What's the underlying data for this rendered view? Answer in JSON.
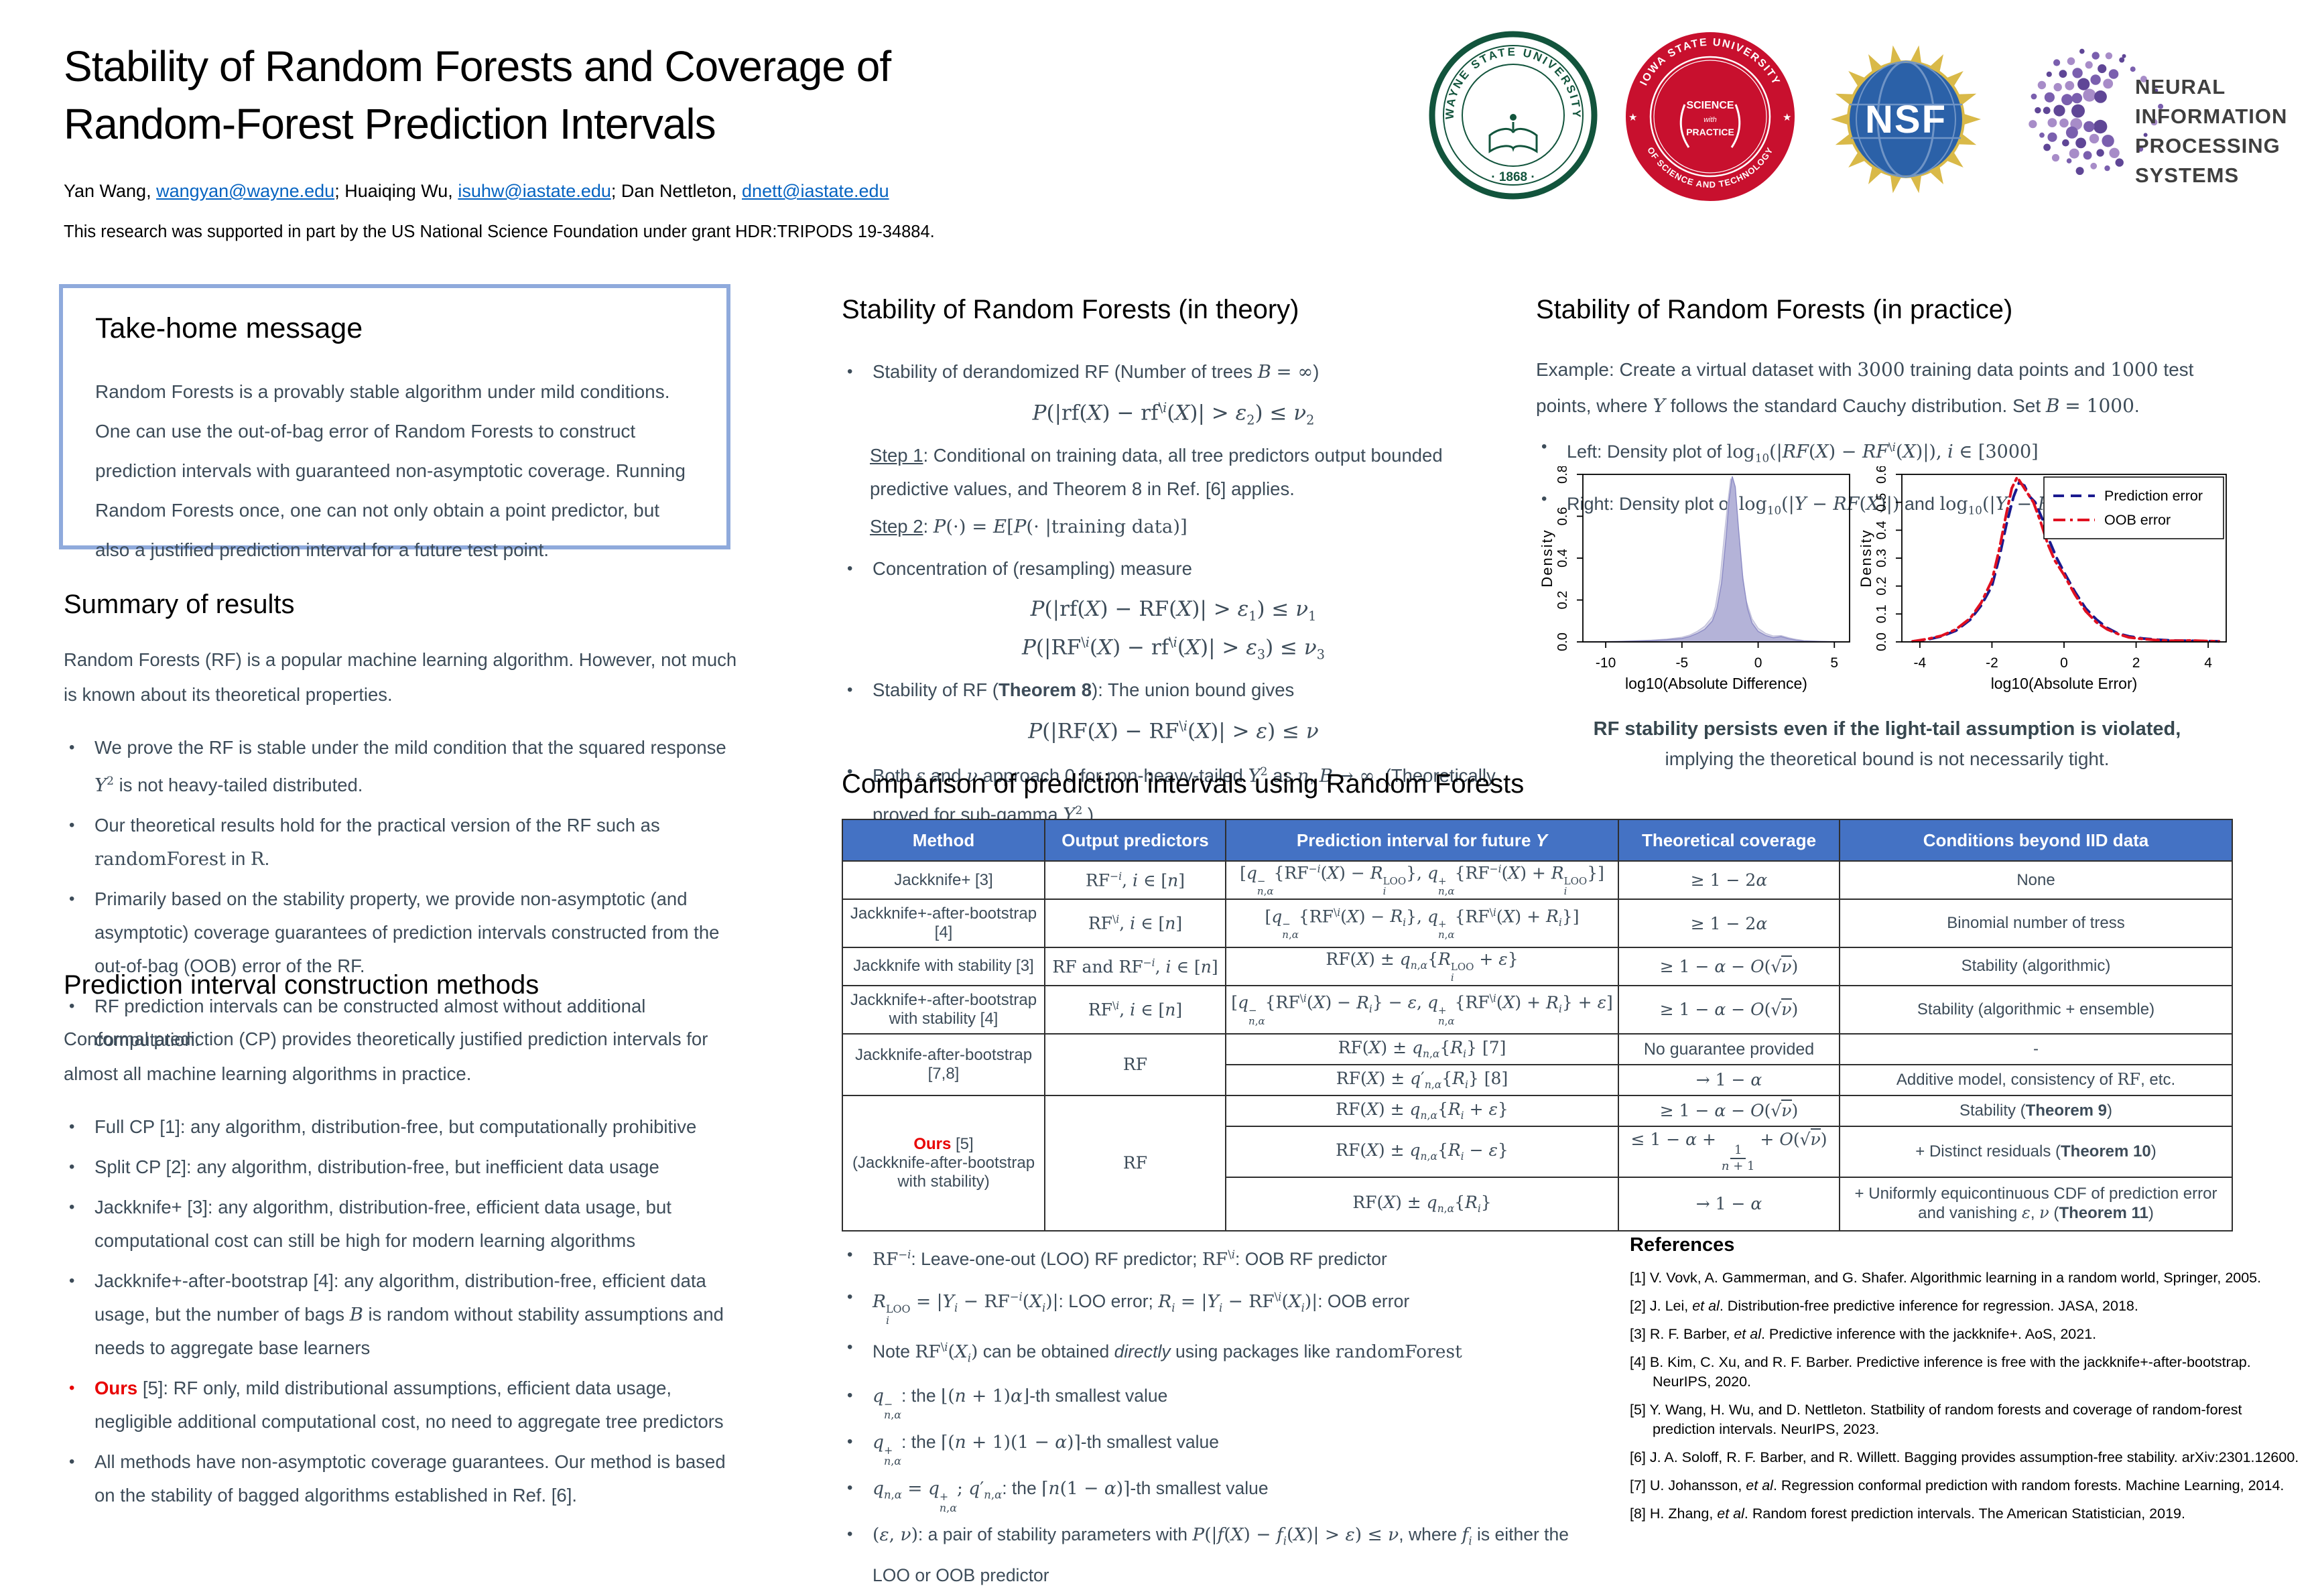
{
  "poster": {
    "title_line1": "Stability of Random Forests and Coverage of",
    "title_line2": "Random-Forest Prediction Intervals",
    "authors": [
      {
        "name": "Yan Wang,",
        "email": "wangyan@wayne.edu",
        "sep": ";"
      },
      {
        "name": "Huaiqing Wu,",
        "email": "isuhw@iastate.edu",
        "sep": ";"
      },
      {
        "name": "Dan Nettleton,",
        "email": "dnett@iastate.edu",
        "sep": ""
      }
    ],
    "support": "This research was supported in part by the US National Science Foundation under grant HDR:TRIPODS 19-34884."
  },
  "logos": {
    "wsu": {
      "ring_text": "WAYNE STATE UNIVERSITY",
      "year": "· 1868 ·"
    },
    "isu": {
      "top": "IOWA STATE UNIVERSITY",
      "bottom": "OF SCIENCE AND TECHNOLOGY",
      "center1": "SCIENCE",
      "center2": "with",
      "center3": "PRACTICE"
    },
    "nsf": {
      "text": "NSF"
    },
    "neurips": {
      "line1": "NEURAL INFORMATION",
      "line2": "PROCESSING SYSTEMS"
    }
  },
  "takehome": {
    "title": "Take-home message",
    "body": "Random Forests is a provably stable algorithm under mild conditions. One can use the out-of-bag error of Random Forests to construct prediction intervals with guaranteed non-asymptotic coverage. Running Random Forests once, one can not only obtain a point predictor, but also a justified prediction interval for a future test point."
  },
  "summary": {
    "title": "Summary of results",
    "intro": "Random Forests (RF) is a popular machine learning algorithm. However, not much is known about its theoretical properties.",
    "bullets": [
      "We prove the RF is stable under the mild condition that the squared response <i class='fm'>Y</i><sup class='fm'>2</sup> is not heavy-tailed distributed.",
      "Our theoretical results hold for the practical version of the RF such as <span class='fm'>randomForest</span> in <span class='fm'>R</span>.",
      "Primarily based on the stability property, we provide non-asymptotic (and asymptotic) coverage guarantees of prediction intervals constructed from the out-of-bag (OOB) error of the RF.",
      "RF prediction intervals can be constructed almost without additional computation."
    ]
  },
  "methods": {
    "title": "Prediction interval construction methods",
    "intro": "Conformal prediction (CP) provides theoretically justified prediction intervals for almost all machine learning algorithms in practice.",
    "bullets": [
      "Full CP [1]: any algorithm, distribution-free, but computationally prohibitive",
      "Split CP [2]: any algorithm, distribution-free, but inefficient data usage",
      "Jackknife+ [3]: any algorithm, distribution-free, efficient data usage, but computational cost can still be high for modern learning algorithms",
      "Jackknife+-after-bootstrap [4]: any algorithm, distribution-free, efficient data usage, but the number of bags <i class='fm'>B</i> is random without stability assumptions and needs to aggregate base learners",
      "<span class='red'><b>Ours</b></span> [5]: RF only, mild distributional assumptions, efficient data usage, negligible additional computational cost, no need to aggregate tree predictors",
      "All methods have non-asymptotic coverage guarantees. Our method is based on the stability of bagged algorithms established in Ref. [6]."
    ]
  },
  "theory": {
    "title": "Stability of Random Forests (in theory)",
    "b1_html": "Stability of derandomized RF (Number of trees <i class='fm'>B</i> <span class='fm'>= ∞</span>)",
    "f1_html": "<i>P</i>(|rf(<i>X</i>) − rf<sup>\\<i>i</i></sup>(<i>X</i>)| > <i>ε</i><sub>2</sub>) ≤ <i>ν</i><sub>2</sub>",
    "step1_label": "Step 1",
    "step1_html": ": Conditional on training data, all tree predictors output bounded predictive values, and Theorem 8 in Ref. [6] applies.",
    "step2_label": "Step 2",
    "step2_html": ": <span class='fm'><i>P</i>(·) = <i>E</i>[<i>P</i>(· |training data)]</span>",
    "b2_html": "Concentration of (resampling) measure",
    "f2_html": "<i>P</i>(|rf(<i>X</i>) − RF(<i>X</i>)| > <i>ε</i><sub>1</sub>) ≤ <i>ν</i><sub>1</sub>",
    "f3_html": "<i>P</i>(|RF<sup>\\<i>i</i></sup>(<i>X</i>) − rf<sup>\\<i>i</i></sup>(<i>X</i>)| > <i>ε</i><sub>3</sub>) ≤ <i>ν</i><sub>3</sub>",
    "b3_html": "Stability of RF (<b>Theorem 8</b>): The union bound gives",
    "f4_html": "<i>P</i>(|RF(<i>X</i>) − RF<sup>\\<i>i</i></sup>(<i>X</i>)| > <i>ε</i>) ≤ <i>ν</i>",
    "b4_html": "Both <i class='fm'>ε</i> and <i class='fm'>ν</i> approach 0 for non-heavy-tailed <i class='fm'>Y</i><sup class='fm'>2</sup> as <i class='fm'>n</i>, <i class='fm'>B</i> <span class='fm'>→ ∞</span>. (Theoretically proved for sub-gamma <i class='fm'>Y</i><sup class='fm'>2</sup>.)"
  },
  "practice": {
    "title": "Stability of Random Forests (in practice)",
    "intro_html": "Example: Create a virtual dataset with <span class='fm'>3000</span> training data points and <span class='fm'>1000</span> test points, where <i class='fm'>Y</i> follows the standard Cauchy distribution. Set <i class='fm'>B</i> <span class='fm'>= 1000</span>.",
    "left_html": "Left: Density plot of <span class='fm'>log<sub>10</sub>(|<i>RF</i>(<i>X</i>) − <i>RF</i><sup>\\<i>i</i></sup>(<i>X</i>)|), <i>i</i> ∈ [3000]</span>",
    "right_html": "Right: Density plot of <span class='fm'>log<sub>10</sub>(|<i>Y</i> − <i>RF</i>(<i>X</i>)|)</span> and <span class='fm'>log<sub>10</sub>(|<i>Y<sub>i</sub></i> − <i>RF</i><sup>\\<i>i</i></sup>(<i>X<sub>i</sub></i>)|)</span>",
    "caption_bold": "RF stability persists even if the light-tail assumption is violated,",
    "caption_rest": "implying the theoretical bound is not necessarily tight."
  },
  "comparison": {
    "title": "Comparison of prediction intervals using Random Forests",
    "headers": [
      "Method",
      "Output predictors",
      "Prediction interval for future <i>Y</i>",
      "Theoretical coverage",
      "Conditions beyond IID data"
    ],
    "rows": {
      "r1": {
        "method": "Jackknife+ [3]",
        "out_html": "RF<sup>−<i>i</i></sup>, <i>i</i> ∈ [<i>n</i>]",
        "int_html": "[<i>q</i><span class='ss'><span>−</span><span><i>n</i>,<i>α</i></span></span>{RF<sup>−<i>i</i></sup>(<i>X</i>) − <i>R</i><span class='ss'><span>LOO</span><span><i>i</i></span></span>}, <i>q</i><span class='ss'><span>+</span><span><i>n</i>,<i>α</i></span></span>{RF<sup>−<i>i</i></sup>(<i>X</i>) + <i>R</i><span class='ss'><span>LOO</span><span><i>i</i></span></span>}]",
        "cov_html": "≥ 1 − 2<i>α</i>",
        "cond_html": "None"
      },
      "r2": {
        "method": "Jackknife+-after-bootstrap [4]",
        "out_html": "RF<sup>\\<i>i</i></sup>, <i>i</i> ∈ [<i>n</i>]",
        "int_html": "[<i>q</i><span class='ss'><span>−</span><span><i>n</i>,<i>α</i></span></span>{RF<sup>\\<i>i</i></sup>(<i>X</i>) − <i>R<sub>i</sub></i>}, <i>q</i><span class='ss'><span>+</span><span><i>n</i>,<i>α</i></span></span>{RF<sup>\\<i>i</i></sup>(<i>X</i>) + <i>R<sub>i</sub></i>}]",
        "cov_html": "≥ 1 − 2<i>α</i>",
        "cond_html": "Binomial number of tress"
      },
      "r3": {
        "method": "Jackknife with stability [3]",
        "out_html": "RF and RF<sup>−<i>i</i></sup>, <i>i</i> ∈ [<i>n</i>]",
        "int_html": "RF(<i>X</i>) ± <i>q</i><sub><i>n</i>,<i>α</i></sub>{<i>R</i><span class='ss'><span>LOO</span><span><i>i</i></span></span> + <i>ε</i>}",
        "cov_html": "≥ 1 − <i>α</i> − <i>O</i>(√<span class='vin'><i>ν</i></span>)",
        "cond_html": "Stability (algorithmic)"
      },
      "r4": {
        "method": "Jackknife+-after-bootstrap with stability [4]",
        "out_html": "RF<sup>\\<i>i</i></sup>, <i>i</i> ∈ [<i>n</i>]",
        "int_html": "[<i>q</i><span class='ss'><span>−</span><span><i>n</i>,<i>α</i></span></span>{RF<sup>\\<i>i</i></sup>(<i>X</i>) − <i>R<sub>i</sub></i>} − <i>ε</i>, <i>q</i><span class='ss'><span>+</span><span><i>n</i>,<i>α</i></span></span>{RF<sup>\\<i>i</i></sup>(<i>X</i>) + <i>R<sub>i</sub></i>} + <i>ε</i>]",
        "cov_html": "≥ 1 − <i>α</i> − <i>O</i>(√<span class='vin'><i>ν</i></span>)",
        "cond_html": "Stability (algorithmic + ensemble)"
      },
      "r5": {
        "method": "Jackknife-after-bootstrap [7,8]",
        "out_html": "RF",
        "a": {
          "int_html": "RF(<i>X</i>) ± <i>q</i><sub><i>n</i>,<i>α</i></sub>{<i>R<sub>i</sub></i>} [7]",
          "cov_html": "<span class='sans'>No guarantee provided</span>",
          "cond_html": "-"
        },
        "b": {
          "int_html": "RF(<i>X</i>) ± <i>q</i>′<sub><i>n</i>,<i>α</i></sub>{<i>R<sub>i</sub></i>} [8]",
          "cov_html": "→ 1 − <i>α</i>",
          "cond_html": "Additive model, consistency of <span class='fm'>RF</span>, etc."
        }
      },
      "r6": {
        "method_html": "<span class='red'><b>Ours</b></span> [5]<br>(Jackknife-after-bootstrap with stability)",
        "out_html": "RF",
        "a": {
          "int_html": "RF(<i>X</i>) ± <i>q</i><sub><i>n</i>,<i>α</i></sub>{<i>R<sub>i</sub></i> + <i>ε</i>}",
          "cov_html": "≥ 1 − <i>α</i> − <i>O</i>(√<span class='vin'><i>ν</i></span>)",
          "cond_html": "Stability (<b>Theorem 9</b>)"
        },
        "b": {
          "int_html": "RF(<i>X</i>) ± <i>q</i><sub><i>n</i>,<i>α</i></sub>{<i>R<sub>i</sub></i> − <i>ε</i>}",
          "cov_html": "≤ 1 − <i>α</i> + <span class='fr'><span>1</span><span><i>n</i> + 1</span></span> + <i>O</i>(√<span class='vin'><i>ν</i></span>)",
          "cond_html": "+ Distinct residuals (<b>Theorem 10</b>)"
        },
        "c": {
          "int_html": "RF(<i>X</i>) ± <i>q</i><sub><i>n</i>,<i>α</i></sub>{<i>R<sub>i</sub></i>}",
          "cov_html": "→ 1 − <i>α</i>",
          "cond_html": "+ Uniformly equicontinuous CDF of prediction error and vanishing <i class='fm'>ε</i>, <i class='fm'>ν</i> (<b>Theorem 11</b>)"
        }
      }
    }
  },
  "footnotes": {
    "bullets": [
      "<span class='fm'>RF<sup>−<i>i</i></sup></span>: Leave-one-out (LOO) RF predictor; <span class='fm'>RF<sup>\\<i>i</i></sup></span>: OOB RF predictor",
      "<span class='fm'><i>R</i><span class='ss'><span>LOO</span><span><i>i</i></span></span> = |<i>Y<sub>i</sub></i> − RF<sup>−<i>i</i></sup>(<i>X<sub>i</sub></i>)|</span>: LOO error; <span class='fm'><i>R<sub>i</sub></i> = |<i>Y<sub>i</sub></i> − RF<sup>\\<i>i</i></sup>(<i>X<sub>i</sub></i>)|</span>: OOB error",
      "Note <span class='fm'>RF<sup>\\<i>i</i></sup>(<i>X<sub>i</sub></i>)</span> can be obtained <i>directly</i> using packages like <span class='fm'>randomForest</span>",
      "<span class='fm'><i>q</i><span class='ss'><span>−</span><span><i>n</i>,<i>α</i></span></span></span>: the <span class='fm'>⌊(<i>n</i> + 1)<i>α</i>⌋</span>-th smallest value",
      "<span class='fm'><i>q</i><span class='ss'><span>+</span><span><i>n</i>,<i>α</i></span></span></span>: the <span class='fm'>⌈(<i>n</i> + 1)(1 − <i>α</i>)⌉</span>-th smallest value",
      "<span class='fm'><i>q</i><sub><i>n</i>,<i>α</i></sub> = <i>q</i><span class='ss'><span>+</span><span><i>n</i>,<i>α</i></span></span>; <i>q</i>′<sub><i>n</i>,<i>α</i></sub></span>: the <span class='fm'>⌈<i>n</i>(1 − <i>α</i>)⌉</span>-th smallest value",
      "<span class='fm'>(<i>ε</i>, <i>ν</i>)</span>: a pair of stability parameters with <span class='fm'><i>P</i>(|<i>f</i>(<i>X</i>) − <i>f<sub>i</sub></i>(<i>X</i>)| > <i>ε</i>) ≤ <i>ν</i></span>, where <span class='fm'><i>f<sub>i</sub></i></span> is either the LOO or OOB predictor"
    ]
  },
  "references": {
    "title": "References",
    "items": [
      "[1] V. Vovk, A. Gammerman, and G. Shafer. Algorithmic learning in a random world, Springer, 2005.",
      "[2] J. Lei, <i>et al</i>. Distribution-free predictive inference for regression. JASA, 2018.",
      "[3] R. F. Barber, <i>et al</i>. Predictive inference with the jackknife+. AoS, 2021.",
      "[4] B. Kim, C. Xu, and R. F. Barber. Predictive inference is free with the jackknife+-after-bootstrap. NeurIPS, 2020.",
      "[5] Y. Wang, H. Wu, and D. Nettleton. Statbility of random forests and coverage of random-forest prediction intervals. NeurIPS, 2023.",
      "[6] J. A. Soloff, R. F. Barber, and R. Willett. Bagging provides assumption-free stability. arXiv:2301.12600.",
      "[7] U. Johansson, <i>et al</i>. Regression conformal prediction with random forests. Machine Learning, 2014.",
      "[8] H. Zhang, <i>et al</i>. Random forest prediction intervals. The American Statistician, 2019."
    ]
  },
  "chart_data": [
    {
      "type": "area",
      "title": "",
      "xlabel": "log10(Absolute Difference)",
      "ylabel": "Density",
      "xlim": [
        -11.5,
        6
      ],
      "ylim": [
        0,
        0.8
      ],
      "xticks": [
        -10,
        -5,
        0,
        5
      ],
      "yticks": [
        0.0,
        0.2,
        0.4,
        0.6,
        0.8
      ],
      "grid": false,
      "series": [
        {
          "name": "loo-difference-density-band",
          "color": "#c2c1da",
          "fill": "#dbdaea",
          "width": 1.5,
          "x": [
            -11,
            -9,
            -7,
            -6,
            -5,
            -4.5,
            -4,
            -3.5,
            -3,
            -2.8,
            -2.5,
            -2.2,
            -2,
            -1.8,
            -1.6,
            -1.4,
            -1.1,
            -0.8,
            -0.4,
            0,
            0.5,
            1,
            1.5,
            2,
            2.5,
            3,
            4,
            5.5
          ],
          "y": [
            0,
            0.003,
            0.008,
            0.013,
            0.022,
            0.032,
            0.05,
            0.075,
            0.12,
            0.17,
            0.3,
            0.52,
            0.66,
            0.78,
            0.72,
            0.58,
            0.36,
            0.2,
            0.11,
            0.065,
            0.04,
            0.028,
            0.03,
            0.02,
            0.012,
            0.006,
            0.003,
            0
          ]
        },
        {
          "name": "loo-difference-density",
          "color": "#8f8ec6",
          "fill": "#b4b3d8",
          "width": 1.5,
          "x": [
            -11,
            -9,
            -8,
            -7,
            -6,
            -5,
            -4.5,
            -4,
            -3.5,
            -3,
            -2.7,
            -2.4,
            -2.1,
            -1.9,
            -1.7,
            -1.5,
            -1.3,
            -1,
            -0.7,
            -0.4,
            0,
            0.5,
            1,
            1.5,
            2,
            2.5,
            3,
            4,
            5.5
          ],
          "y": [
            0,
            0.002,
            0.004,
            0.006,
            0.01,
            0.016,
            0.025,
            0.04,
            0.06,
            0.1,
            0.16,
            0.28,
            0.5,
            0.68,
            0.79,
            0.74,
            0.55,
            0.3,
            0.16,
            0.09,
            0.05,
            0.03,
            0.02,
            0.025,
            0.015,
            0.008,
            0.004,
            0.002,
            0
          ]
        }
      ]
    },
    {
      "type": "line",
      "title": "",
      "xlabel": "log10(Absolute Error)",
      "ylabel": "Density",
      "xlim": [
        -4.5,
        4.5
      ],
      "ylim": [
        0,
        0.6
      ],
      "xticks": [
        -4,
        -2,
        0,
        2,
        4
      ],
      "yticks": [
        0.0,
        0.1,
        0.2,
        0.3,
        0.4,
        0.5,
        0.6
      ],
      "grid": false,
      "legend_position": "top-right",
      "legend": [
        {
          "label": "Prediction error",
          "color": "#1a1a8f",
          "dash": [
            16,
            10
          ]
        },
        {
          "label": "OOB error",
          "color": "#e01020",
          "dash": [
            18,
            7,
            4,
            7
          ]
        }
      ],
      "series": [
        {
          "name": "prediction-error",
          "color": "#1a1a8f",
          "width": 4,
          "dash": [
            16,
            10
          ],
          "fill": "none",
          "x": [
            -4.2,
            -3.8,
            -3.4,
            -3,
            -2.6,
            -2.3,
            -2,
            -1.8,
            -1.6,
            -1.4,
            -1.25,
            -1.1,
            -0.95,
            -0.8,
            -0.6,
            -0.4,
            -0.2,
            0,
            0.3,
            0.6,
            0.9,
            1.2,
            1.5,
            1.8,
            2.2,
            2.6,
            3,
            3.5,
            4,
            4.3
          ],
          "y": [
            0.002,
            0.008,
            0.02,
            0.04,
            0.08,
            0.13,
            0.2,
            0.3,
            0.42,
            0.52,
            0.57,
            0.56,
            0.52,
            0.5,
            0.44,
            0.36,
            0.3,
            0.25,
            0.18,
            0.12,
            0.08,
            0.05,
            0.03,
            0.02,
            0.012,
            0.008,
            0.005,
            0.004,
            0.003,
            0.002
          ]
        },
        {
          "name": "oob-error",
          "color": "#e01020",
          "width": 4,
          "dash": [
            18,
            7,
            4,
            7
          ],
          "fill": "none",
          "x": [
            -4.2,
            -3.8,
            -3.4,
            -3,
            -2.6,
            -2.3,
            -2,
            -1.8,
            -1.6,
            -1.45,
            -1.3,
            -1.15,
            -1,
            -0.85,
            -0.65,
            -0.45,
            -0.25,
            0,
            0.3,
            0.6,
            0.9,
            1.2,
            1.5,
            1.8,
            2.2,
            2.6,
            3,
            3.5,
            4,
            4.3
          ],
          "y": [
            0.002,
            0.01,
            0.022,
            0.045,
            0.085,
            0.14,
            0.22,
            0.33,
            0.46,
            0.55,
            0.59,
            0.56,
            0.53,
            0.5,
            0.43,
            0.35,
            0.29,
            0.24,
            0.17,
            0.11,
            0.07,
            0.045,
            0.028,
            0.016,
            0.01,
            0.006,
            0.004,
            0.005,
            0.003,
            0.002
          ]
        }
      ]
    }
  ]
}
